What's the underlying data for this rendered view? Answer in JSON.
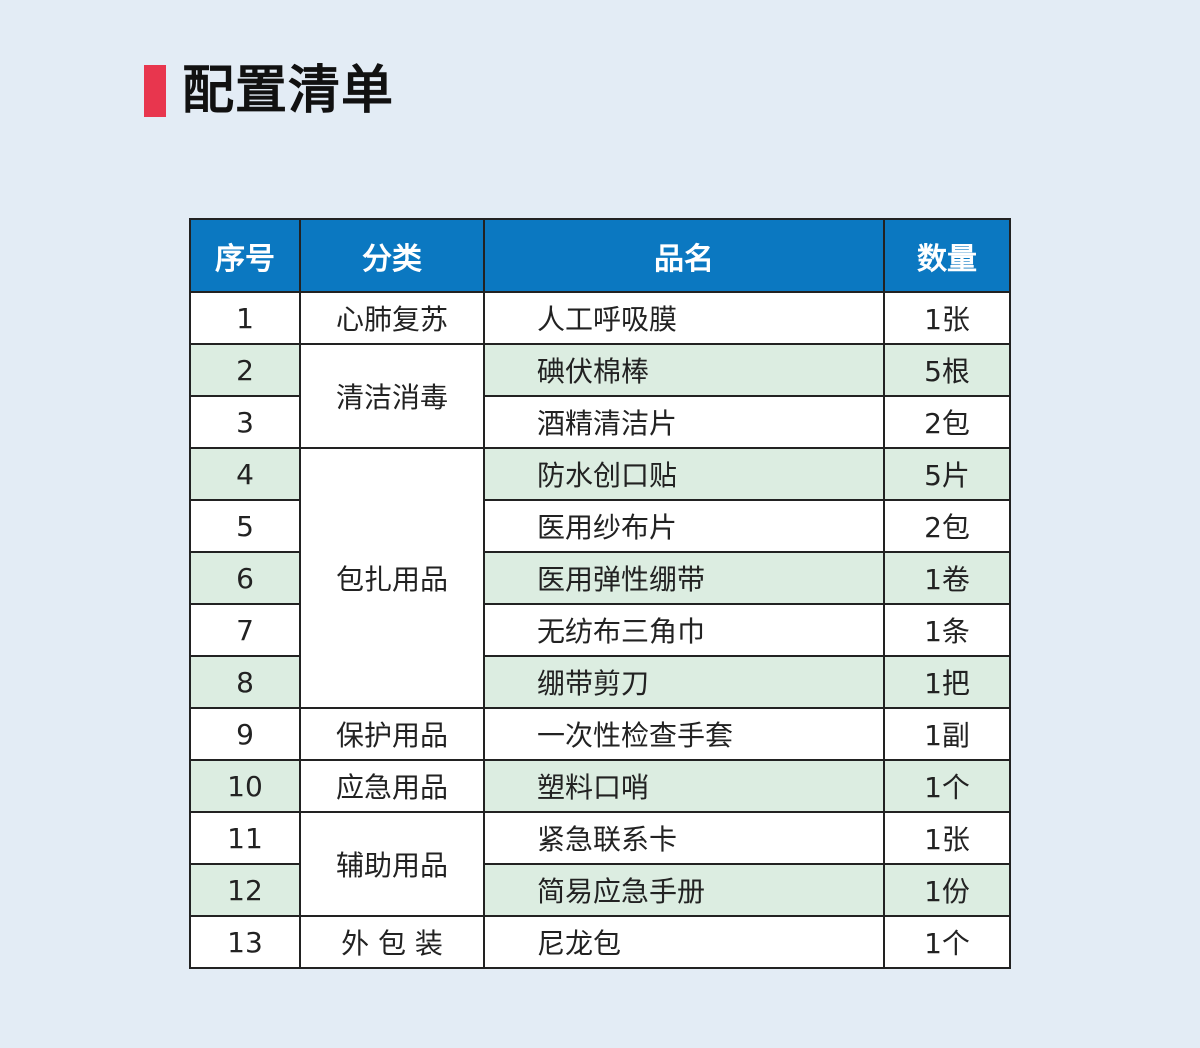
{
  "title": "配置清单",
  "colors": {
    "accent": "#e8364e",
    "header": "#0b78c1",
    "stripe": "#dcede1"
  },
  "headers": [
    "序号",
    "分类",
    "品名",
    "数量"
  ],
  "rows": [
    {
      "no": "1",
      "category": "心肺复苏",
      "name": "人工呼吸膜",
      "qty": "1张"
    },
    {
      "no": "2",
      "category": "清洁消毒",
      "name": "碘伏棉棒",
      "qty": "5根"
    },
    {
      "no": "3",
      "name": "酒精清洁片",
      "qty": "2包"
    },
    {
      "no": "4",
      "category": "包扎用品",
      "name": "防水创口贴",
      "qty": "5片"
    },
    {
      "no": "5",
      "name": "医用纱布片",
      "qty": "2包"
    },
    {
      "no": "6",
      "name": "医用弹性绷带",
      "qty": "1卷"
    },
    {
      "no": "7",
      "name": "无纺布三角巾",
      "qty": "1条"
    },
    {
      "no": "8",
      "name": "绷带剪刀",
      "qty": "1把"
    },
    {
      "no": "9",
      "category": "保护用品",
      "name": "一次性检查手套",
      "qty": "1副"
    },
    {
      "no": "10",
      "category": "应急用品",
      "name": "塑料口哨",
      "qty": "1个"
    },
    {
      "no": "11",
      "category": "辅助用品",
      "name": "紧急联系卡",
      "qty": "1张"
    },
    {
      "no": "12",
      "name": "简易应急手册",
      "qty": "1份"
    },
    {
      "no": "13",
      "category": "外 包 装",
      "name": "尼龙包",
      "qty": "1个"
    }
  ]
}
